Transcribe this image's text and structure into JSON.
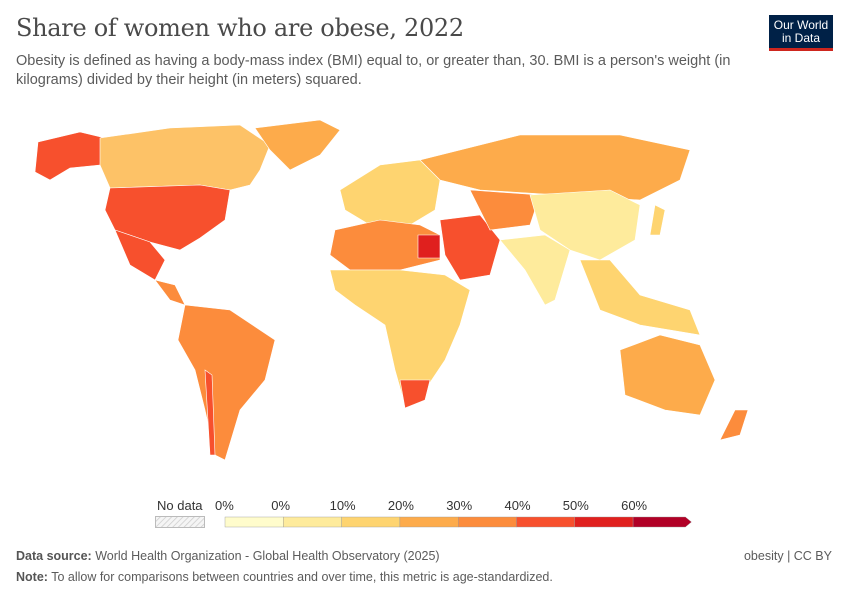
{
  "header": {
    "title": "Share of women who are obese, 2022",
    "subtitle": "Obesity is defined as having a body-mass index (BMI) equal to, or greater than, 30. BMI is a person's weight (in kilograms) divided by their height (in meters) squared.",
    "logo": "Our World in Data"
  },
  "legend": {
    "no_data_label": "No data",
    "labels": [
      "0%",
      "0%",
      "10%",
      "20%",
      "30%",
      "40%",
      "50%",
      "60%"
    ],
    "colors": [
      "#fffccc",
      "#feeb9c",
      "#fed470",
      "#fdab4b",
      "#fc8c3c",
      "#f7502d",
      "#e0201e",
      "#b10026"
    ],
    "no_data_color": "#eeeeee"
  },
  "footer": {
    "source_label": "Data source:",
    "source": "World Health Organization - Global Health Observatory (2025)",
    "note_label": "Note:",
    "note": "To allow for comparisons between countries and over time, this metric is age-standardized.",
    "license": "obesity | CC BY"
  }
}
